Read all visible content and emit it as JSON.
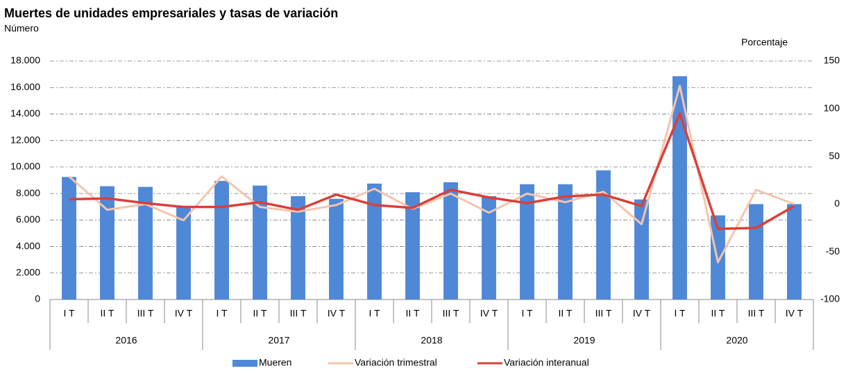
{
  "chart_data": {
    "type": "bar_line",
    "title": "Muertes de unidades empresariales y tasas de variación",
    "y_label": "Número",
    "y2_label": "Porcentaje",
    "categories": [
      "I T",
      "II T",
      "III T",
      "IV T",
      "I T",
      "II T",
      "III T",
      "IV T",
      "I T",
      "II T",
      "III T",
      "IV T",
      "I T",
      "II T",
      "III T",
      "IV T",
      "I T",
      "II T",
      "III T",
      "IV T"
    ],
    "groups": [
      "2016",
      "2017",
      "2018",
      "2019",
      "2020"
    ],
    "series": [
      {
        "name": "Mueren",
        "type": "bar",
        "color": "#4f88d6",
        "values": [
          9250,
          8550,
          8500,
          7000,
          8950,
          8600,
          7800,
          7600,
          8750,
          8100,
          8850,
          7800,
          8700,
          8700,
          9750,
          7550,
          16850,
          6350,
          7200,
          7200
        ]
      },
      {
        "name": "Variación trimestral",
        "type": "line",
        "axis": "y2",
        "color": "#f5c4ac",
        "values": [
          29,
          -6,
          0,
          -17,
          29,
          -3,
          -8,
          -1,
          16,
          -5,
          11,
          -9,
          11,
          2,
          13,
          -21,
          124,
          -61,
          15,
          0
        ]
      },
      {
        "name": "Variación interanual",
        "type": "line",
        "axis": "y2",
        "color": "#d8403a",
        "values": [
          5,
          6,
          1,
          -3,
          -3,
          2,
          -6,
          10,
          -1,
          -4,
          15,
          7,
          1,
          8,
          10,
          -2,
          95,
          -26,
          -25,
          -2
        ]
      }
    ],
    "ylim": [
      0,
      18000
    ],
    "yticks": [
      0,
      {
        "value": 2000,
        "label": "2.000"
      },
      {
        "value": 4000,
        "label": "4.000"
      },
      {
        "value": 6000,
        "label": "6.000"
      },
      {
        "value": 8000,
        "label": "8.000"
      },
      {
        "value": 10000,
        "label": "10.000"
      },
      {
        "value": 12000,
        "label": "12.000"
      },
      {
        "value": 14000,
        "label": "14.000"
      },
      {
        "value": 16000,
        "label": "16.000"
      },
      {
        "value": 18000,
        "label": "18.000"
      }
    ],
    "y2lim": [
      -100,
      150
    ],
    "y2ticks": [
      -100,
      -50,
      0,
      50,
      100,
      150
    ],
    "grid": true,
    "legend": "bottom"
  }
}
